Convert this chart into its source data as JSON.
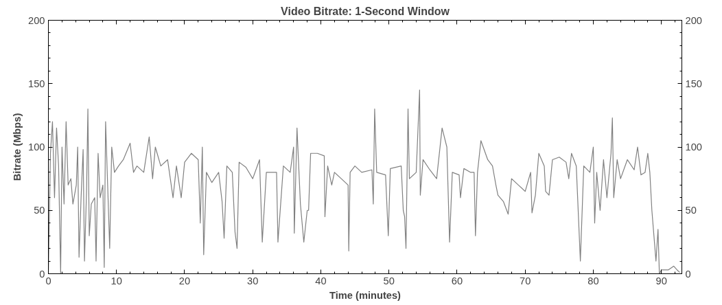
{
  "chart_data": {
    "type": "line",
    "title": "Video Bitrate: 1-Second Window",
    "xlabel": "Time (minutes)",
    "ylabel": "Bitrate (Mbps)",
    "xlim": [
      0,
      93
    ],
    "xticks": [
      0,
      10,
      20,
      30,
      40,
      50,
      60,
      70,
      80,
      90
    ],
    "ylim": [
      0,
      200
    ],
    "yticks": [
      0,
      50,
      100,
      150,
      200
    ],
    "y2lim": [
      0,
      200
    ],
    "y2ticks": [
      0,
      50,
      100,
      150,
      200
    ],
    "grid": false,
    "marker": "none",
    "line_style": "solid",
    "series": [
      {
        "color": "#808080",
        "x": [
          0,
          0.3,
          0.6,
          0.9,
          1.2,
          1.5,
          1.8,
          2.0,
          2.3,
          2.6,
          2.9,
          3.3,
          3.6,
          4.1,
          4.3,
          4.5,
          4.8,
          5.1,
          5.3,
          5.6,
          5.8,
          6.0,
          6.3,
          6.8,
          7.0,
          7.3,
          7.6,
          8.0,
          8.2,
          8.4,
          8.7,
          9.0,
          9.3,
          9.7,
          10.3,
          11,
          12,
          12.5,
          13,
          14,
          14.8,
          15.3,
          15.7,
          16.5,
          17.5,
          18.3,
          18.8,
          19.5,
          20,
          21,
          22,
          22.3,
          22.6,
          22.8,
          23.2,
          24,
          25,
          25.5,
          25.8,
          26.2,
          27,
          27.4,
          27.7,
          28,
          29,
          30,
          31,
          31.4,
          32,
          33.5,
          33.7,
          34.5,
          35.5,
          36,
          36.1,
          36.5,
          37,
          37.5,
          38.0,
          38.2,
          38.5,
          39.5,
          40.5,
          40.6,
          41,
          41.6,
          42,
          43,
          44,
          44.1,
          44.3,
          45,
          46,
          47.5,
          47.7,
          47.9,
          48.2,
          49.5,
          49.9,
          50.2,
          51.8,
          52.1,
          52.3,
          52.5,
          52.8,
          53,
          54,
          54.5,
          54.6,
          55,
          56,
          57,
          57.8,
          58.5,
          58.9,
          59.3,
          60.3,
          60.5,
          61,
          62,
          62.5,
          62.7,
          63,
          63.5,
          64.5,
          65.2,
          65.7,
          66,
          66.8,
          67.5,
          68,
          69,
          70,
          70.8,
          71,
          71.5,
          72,
          72.8,
          73,
          73.5,
          74,
          75,
          76,
          76.4,
          76.8,
          77.5,
          78.1,
          78.6,
          79.5,
          80,
          80.2,
          80.5,
          81,
          81.5,
          82,
          82.6,
          82.8,
          83,
          83.5,
          84,
          85,
          86,
          86.5,
          87,
          87.6,
          88,
          88.3,
          88.6,
          88.9,
          89.2,
          89.5,
          89.7,
          90,
          91,
          91.8,
          92.3,
          92.7
        ],
        "values": [
          0,
          95,
          120,
          60,
          115,
          85,
          0,
          100,
          55,
          120,
          70,
          75,
          55,
          70,
          100,
          13,
          60,
          98,
          10,
          65,
          130,
          30,
          55,
          60,
          10,
          95,
          60,
          70,
          5,
          120,
          70,
          20,
          100,
          80,
          85,
          90,
          103,
          80,
          85,
          80,
          108,
          75,
          100,
          85,
          90,
          60,
          85,
          60,
          88,
          95,
          90,
          40,
          100,
          15,
          80,
          72,
          80,
          57,
          28,
          85,
          80,
          33,
          20,
          88,
          84,
          75,
          90,
          25,
          80,
          80,
          25,
          85,
          80,
          100,
          32,
          115,
          55,
          25,
          50,
          50,
          95,
          95,
          93,
          45,
          85,
          70,
          80,
          75,
          70,
          18,
          80,
          85,
          80,
          82,
          55,
          130,
          80,
          78,
          30,
          83,
          85,
          50,
          45,
          20,
          130,
          75,
          80,
          145,
          62,
          90,
          82,
          75,
          115,
          100,
          25,
          80,
          78,
          60,
          83,
          80,
          80,
          30,
          80,
          105,
          90,
          85,
          70,
          62,
          57,
          47,
          75,
          70,
          65,
          80,
          48,
          62,
          95,
          85,
          65,
          62,
          90,
          92,
          88,
          75,
          95,
          85,
          10,
          85,
          80,
          100,
          40,
          80,
          50,
          90,
          60,
          95,
          123,
          60,
          90,
          75,
          90,
          82,
          100,
          78,
          80,
          95,
          80,
          50,
          30,
          10,
          35,
          0,
          3,
          3,
          6,
          3,
          1
        ]
      }
    ]
  }
}
